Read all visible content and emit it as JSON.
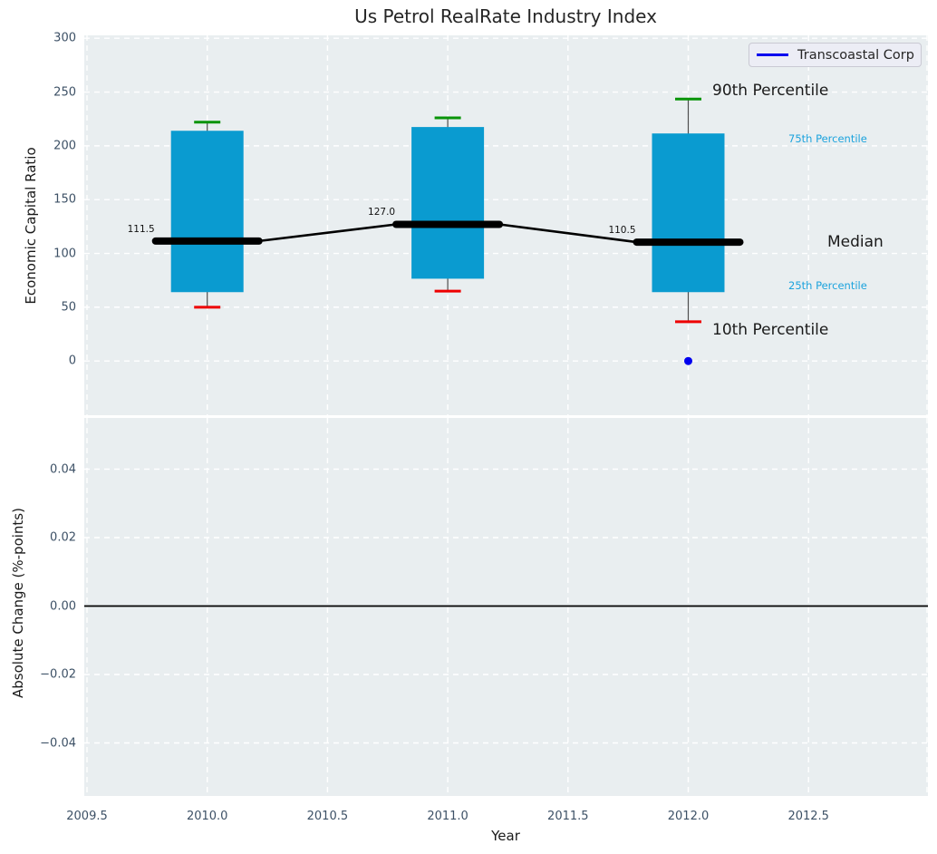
{
  "title": "Us Petrol RealRate Industry Index",
  "legend": {
    "label": "Transcoastal Corp"
  },
  "colors": {
    "box_fill": "#0a9bd0",
    "whisker_line": "#4d4d4d",
    "cap_high": "#089408",
    "cap_low": "#ee0000",
    "median_line": "#000000",
    "overlay_point": "#0000ee",
    "plot_background": "#e9eef0",
    "gridline": "#ffffff",
    "tick_label": "#3d5166",
    "percentile_label_blue": "#1ca3dd",
    "zero_line": "#000000"
  },
  "chart_data": {
    "type": "boxplot",
    "title": "Us Petrol RealRate Industry Index",
    "xlabel": "Year",
    "xlim": [
      2009.5,
      2013.0
    ],
    "xticks": [
      {
        "v": 2009.5,
        "label": "2009.5"
      },
      {
        "v": 2010.0,
        "label": "2010.0"
      },
      {
        "v": 2010.5,
        "label": "2010.5"
      },
      {
        "v": 2011.0,
        "label": "2011.0"
      },
      {
        "v": 2011.5,
        "label": "2011.5"
      },
      {
        "v": 2012.0,
        "label": "2012.0"
      },
      {
        "v": 2012.5,
        "label": "2012.5"
      }
    ],
    "gridline_years": [
      2009.5,
      2010.0,
      2010.5,
      2011.0,
      2011.5,
      2012.0,
      2012.5,
      2013.0
    ],
    "top_panel": {
      "ylabel": "Economic Capital Ratio",
      "ylim": [
        -50,
        302
      ],
      "yticks": [
        {
          "v": 300,
          "label": "300"
        },
        {
          "v": 250,
          "label": "250"
        },
        {
          "v": 200,
          "label": "200"
        },
        {
          "v": 150,
          "label": "150"
        },
        {
          "v": 100,
          "label": "100"
        },
        {
          "v": 50,
          "label": "50"
        },
        {
          "v": 0,
          "label": "0"
        }
      ],
      "boxes": [
        {
          "year": 2010,
          "p10": 50,
          "p25": 64,
          "median": 111.5,
          "p75": 214,
          "p90": 222,
          "median_label": "111.5"
        },
        {
          "year": 2011,
          "p10": 65,
          "p25": 76.5,
          "median": 127.0,
          "p75": 217.5,
          "p90": 226,
          "median_label": "127.0"
        },
        {
          "year": 2012,
          "p10": 36.5,
          "p25": 64,
          "median": 110.5,
          "p75": 211.5,
          "p90": 243.5,
          "median_label": "110.5"
        }
      ],
      "overlay_series": {
        "name": "Transcoastal Corp",
        "points": [
          {
            "x": 2012,
            "y": 0
          }
        ]
      },
      "percentile_annotations": [
        {
          "text": "90th Percentile",
          "style": "large-dark"
        },
        {
          "text": "75th Percentile",
          "style": "small-blue"
        },
        {
          "text": "Median",
          "style": "large-dark"
        },
        {
          "text": "25th Percentile",
          "style": "small-blue"
        },
        {
          "text": "10th Percentile",
          "style": "large-dark"
        }
      ]
    },
    "bottom_panel": {
      "ylabel": "Absolute Change (%-points)",
      "ylim": [
        -0.055,
        0.054
      ],
      "yticks": [
        {
          "v": 0.04,
          "label": "0.04"
        },
        {
          "v": 0.02,
          "label": "0.02"
        },
        {
          "v": 0.0,
          "label": "0.00"
        },
        {
          "v": -0.02,
          "label": "−0.02"
        },
        {
          "v": -0.04,
          "label": "−0.04"
        }
      ],
      "zero_line_value": 0.0
    }
  }
}
